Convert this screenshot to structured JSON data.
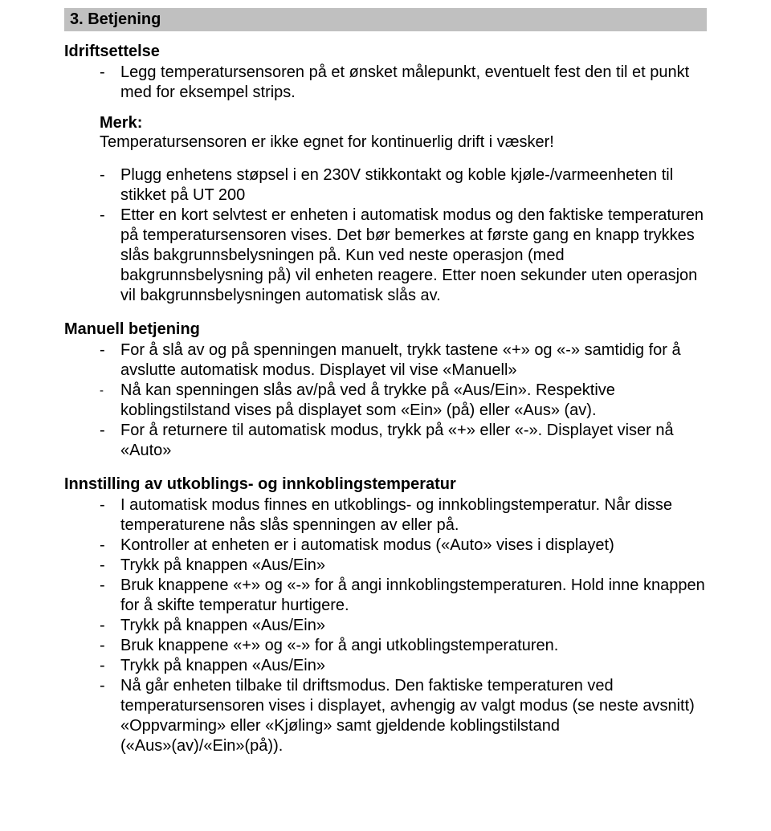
{
  "colors": {
    "text": "#000000",
    "background": "#ffffff",
    "header_bg": "#c0c0c0"
  },
  "typography": {
    "font_family": "Arial",
    "body_fontsize_pt": 15,
    "bold_weight": 700
  },
  "section": {
    "number_title": "3. Betjening"
  },
  "idrift": {
    "heading": "Idriftsettelse",
    "bullet1": "Legg temperatursensoren på et ønsket målepunkt, eventuelt fest den til et punkt med for eksempel strips.",
    "merk_label": "Merk:",
    "merk_text": "Temperatursensoren er ikke egnet for kontinuerlig drift i væsker!",
    "bullet2": "Plugg enhetens støpsel i en 230V stikkontakt og koble kjøle-/varmeenheten til stikket på UT 200",
    "bullet3": "Etter en kort selvtest er enheten i automatisk modus og den faktiske temperaturen på temperatursensoren vises. Det bør bemerkes at første gang en knapp trykkes slås bakgrunnsbelysningen på. Kun ved neste operasjon (med bakgrunnsbelysning på) vil enheten reagere. Etter noen sekunder uten operasjon vil bakgrunnsbelysningen automatisk slås av."
  },
  "manuell": {
    "heading": "Manuell betjening",
    "b1": "For å slå av og på spenningen manuelt, trykk tastene «+» og «-» samtidig for å avslutte automatisk modus. Displayet vil vise «Manuell»",
    "b2": "Nå kan spenningen slås av/på ved å trykke på «Aus/Ein». Respektive koblingstilstand vises på displayet som «Ein» (på) eller «Aus» (av).",
    "b3": "For å returnere til automatisk modus, trykk på «+» eller «-». Displayet viser nå «Auto»"
  },
  "innstilling": {
    "heading": "Innstilling av utkoblings- og innkoblingstemperatur",
    "b1": "I automatisk modus finnes en utkoblings- og innkoblingstemperatur. Når disse temperaturene nås slås spenningen av eller på.",
    "b2": "Kontroller at enheten er i automatisk modus («Auto» vises i displayet)",
    "b3": "Trykk på knappen «Aus/Ein»",
    "b4": "Bruk knappene «+» og «-» for å angi innkoblingstemperaturen. Hold inne knappen for å skifte temperatur hurtigere.",
    "b5": "Trykk på knappen «Aus/Ein»",
    "b6": "Bruk knappene «+» og «-» for å angi utkoblingstemperaturen.",
    "b7": "Trykk på knappen «Aus/Ein»",
    "b8": "Nå går enheten tilbake til driftsmodus. Den faktiske temperaturen ved temperatursensoren vises i displayet, avhengig av valgt modus (se neste avsnitt) «Oppvarming» eller «Kjøling» samt gjeldende koblingstilstand («Aus»(av)/«Ein»(på))."
  }
}
